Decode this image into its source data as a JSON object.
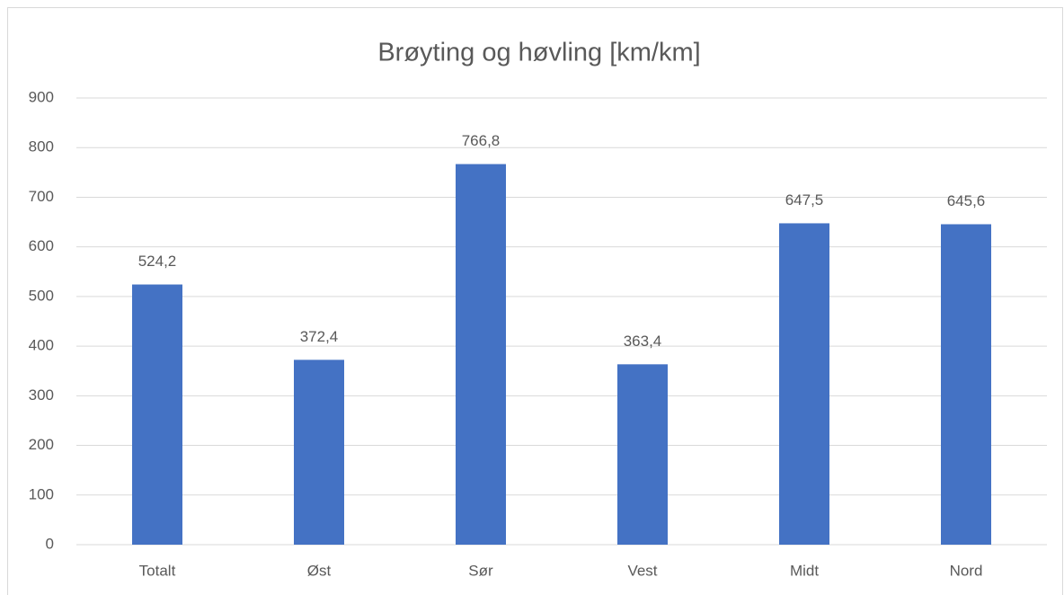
{
  "chart_data": {
    "type": "bar",
    "title": "Brøyting og høvling [km/km]",
    "categories": [
      "Totalt",
      "Øst",
      "Sør",
      "Vest",
      "Midt",
      "Nord"
    ],
    "values": [
      524.2,
      372.4,
      766.8,
      363.4,
      647.5,
      645.6
    ],
    "value_labels": [
      "524,2",
      "372,4",
      "766,8",
      "363,4",
      "647,5",
      "645,6"
    ],
    "color": "#4472c4",
    "ylim": [
      0,
      900
    ],
    "yticks": [
      0,
      100,
      200,
      300,
      400,
      500,
      600,
      700,
      800,
      900
    ],
    "grid": true
  }
}
